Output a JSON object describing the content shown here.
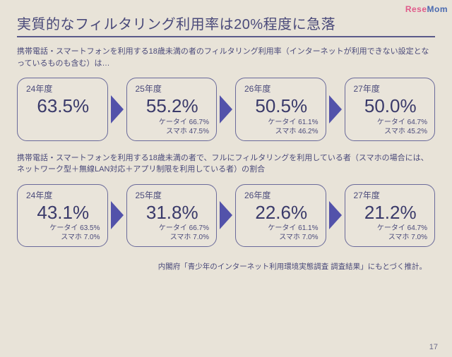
{
  "watermark": {
    "left": "Rese",
    "right": "Mom"
  },
  "title": "実質的なフィルタリング利用率は20%程度に急落",
  "section1": {
    "desc": "携帯電話・スマートフォンを利用する18歳未満の者のフィルタリング利用率（インターネットが利用できない設定となっているものも含む）は…",
    "cards": [
      {
        "year": "24年度",
        "main": "63.5%",
        "ketai": "",
        "sumaho": ""
      },
      {
        "year": "25年度",
        "main": "55.2%",
        "ketai": "ケータイ 66.7%",
        "sumaho": "スマホ 47.5%"
      },
      {
        "year": "26年度",
        "main": "50.5%",
        "ketai": "ケータイ 61.1%",
        "sumaho": "スマホ 46.2%"
      },
      {
        "year": "27年度",
        "main": "50.0%",
        "ketai": "ケータイ 64.7%",
        "sumaho": "スマホ 45.2%"
      }
    ]
  },
  "section2": {
    "desc": "携帯電話・スマートフォンを利用する18歳未満の者で、フルにフィルタリングを利用している者（スマホの場合には、ネットワーク型＋無線LAN対応＋アプリ制限を利用している者）の割合",
    "cards": [
      {
        "year": "24年度",
        "main": "43.1%",
        "ketai": "ケータイ 63.5%",
        "sumaho": "スマホ 7.0%"
      },
      {
        "year": "25年度",
        "main": "31.8%",
        "ketai": "ケータイ 66.7%",
        "sumaho": "スマホ 7.0%"
      },
      {
        "year": "26年度",
        "main": "22.6%",
        "ketai": "ケータイ 61.1%",
        "sumaho": "スマホ 7.0%"
      },
      {
        "year": "27年度",
        "main": "21.2%",
        "ketai": "ケータイ 64.7%",
        "sumaho": "スマホ 7.0%"
      }
    ]
  },
  "footnote": "内閣府「青少年のインターネット利用環境実態調査 調査結果」にもとづく推計。",
  "page": "17",
  "colors": {
    "arrow": "#5252aa",
    "border": "#6a6a9a",
    "text": "#4a4a7a",
    "bg": "#e8e3d8"
  }
}
